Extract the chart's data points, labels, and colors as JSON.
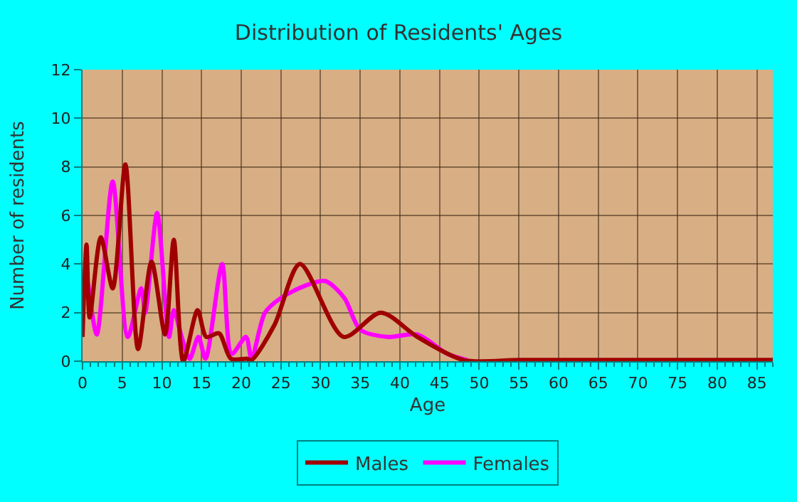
{
  "chart_data": {
    "type": "line",
    "title": "Distribution of Residents' Ages",
    "xlabel": "Age",
    "ylabel": "Number of residents",
    "xlim": [
      0,
      87
    ],
    "xticks": [
      0,
      5,
      10,
      15,
      20,
      25,
      30,
      35,
      40,
      45,
      50,
      55,
      60,
      65,
      70,
      75,
      80,
      85
    ],
    "ylim": [
      0,
      12
    ],
    "yticks": [
      0,
      2,
      4,
      6,
      8,
      10,
      12
    ],
    "grid": true,
    "legend": "bottom",
    "marker": "none",
    "line_style": "solid",
    "series": [
      {
        "name": "Males",
        "color": "#a00000",
        "x": [
          0,
          0.5,
          0.9,
          2.3,
          3.8,
          5.4,
          7.0,
          8.7,
          10.4,
          11.5,
          12.7,
          14.5,
          15.6,
          17.2,
          18.7,
          20.7,
          21.3,
          24.2,
          27.4,
          32.9,
          37.6,
          42.2,
          48,
          55,
          65,
          75,
          87
        ],
        "values": [
          1.0,
          4.8,
          1.8,
          5.1,
          3.0,
          8.1,
          0.5,
          4.1,
          1.1,
          5.0,
          0.0,
          2.1,
          1.0,
          1.15,
          0.1,
          0.1,
          0.05,
          1.5,
          4.0,
          1.0,
          2.0,
          1.0,
          0.05,
          0.05,
          0.05,
          0.05,
          0.05
        ]
      },
      {
        "name": "Females",
        "color": "#ff00ff",
        "x": [
          0.7,
          1.8,
          3.8,
          5.7,
          7.4,
          7.9,
          9.4,
          10.9,
          11.5,
          12.5,
          13.5,
          14.6,
          15.5,
          17.6,
          18.8,
          20.6,
          21.3,
          23,
          25,
          28,
          30.6,
          33,
          35,
          38.4,
          42.2,
          46,
          48.5
        ],
        "values": [
          3.2,
          1.1,
          7.4,
          1.0,
          3.0,
          2.0,
          6.1,
          1.0,
          2.1,
          1.0,
          0.1,
          1.0,
          0.1,
          4.0,
          0.3,
          1.0,
          0.1,
          2.0,
          2.6,
          3.1,
          3.3,
          2.6,
          1.3,
          1.0,
          1.1,
          0.3,
          0.05
        ]
      }
    ]
  }
}
